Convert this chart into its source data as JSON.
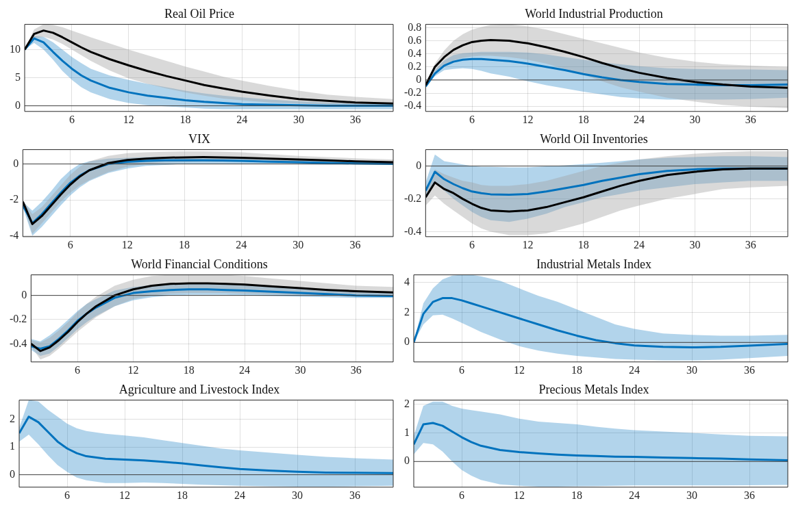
{
  "chart_data": [
    {
      "type": "line",
      "title": "Real Oil Price",
      "x": [
        1,
        2,
        3,
        4,
        5,
        6,
        7,
        8,
        10,
        12,
        14,
        16,
        18,
        20,
        22,
        24,
        27,
        30,
        33,
        36,
        40
      ],
      "xlim": [
        1,
        40
      ],
      "xticks": [
        6,
        12,
        18,
        24,
        30,
        36
      ],
      "ylim": [
        -1,
        14.5
      ],
      "yticks": [
        0,
        5,
        10
      ],
      "grid": true,
      "marker": "none",
      "line_style": "solid",
      "ref_lines": [
        {
          "axis": "y",
          "value": 0,
          "color": "#404040"
        }
      ],
      "series": [
        {
          "color": "#0072bd",
          "values": [
            10,
            12,
            11.3,
            9.6,
            8,
            6.6,
            5.4,
            4.5,
            3.2,
            2.4,
            1.8,
            1.4,
            1,
            0.7,
            0.5,
            0.3,
            0.2,
            0.1,
            0,
            0,
            0
          ],
          "lower": [
            10,
            11.2,
            10,
            8.2,
            6.2,
            4.6,
            3.3,
            2.4,
            1.2,
            0.5,
            0.1,
            -0.1,
            -0.3,
            -0.5,
            -0.6,
            -0.6,
            -0.6,
            -0.6,
            -0.6,
            -0.6,
            -0.6
          ],
          "upper": [
            10,
            12.4,
            12.3,
            11.3,
            10,
            8.7,
            7.6,
            6.6,
            5.4,
            4.6,
            3.9,
            3.3,
            2.7,
            2.2,
            1.8,
            1.5,
            1.1,
            0.8,
            0.6,
            0.5,
            0.4
          ]
        },
        {
          "color": "#000000",
          "values": [
            10,
            12.8,
            13.4,
            13,
            12.2,
            11.3,
            10.4,
            9.6,
            8.3,
            7.2,
            6.2,
            5.3,
            4.5,
            3.7,
            3.1,
            2.5,
            1.8,
            1.2,
            0.9,
            0.6,
            0.4
          ],
          "lower": [
            10,
            12,
            12.3,
            11.8,
            11,
            10,
            9,
            8,
            6.3,
            4.9,
            3.9,
            3.1,
            2.4,
            1.8,
            1.3,
            1,
            0.6,
            0.4,
            0.2,
            0.1,
            0
          ],
          "upper": [
            10,
            13.6,
            14.5,
            14.4,
            14,
            13.4,
            12.8,
            12.2,
            11.1,
            10,
            9,
            8,
            7,
            6.1,
            5.2,
            4.5,
            3.5,
            2.7,
            2,
            1.6,
            1.2
          ]
        }
      ]
    },
    {
      "type": "line",
      "title": "World Industrial Production",
      "x": [
        1,
        2,
        3,
        4,
        5,
        6,
        7,
        8,
        10,
        12,
        14,
        16,
        18,
        20,
        22,
        24,
        27,
        30,
        33,
        36,
        40
      ],
      "xlim": [
        1,
        40
      ],
      "xticks": [
        6,
        12,
        18,
        24,
        30,
        36
      ],
      "ylim": [
        -0.48,
        0.85
      ],
      "yticks": [
        -0.4,
        -0.2,
        0,
        0.2,
        0.4,
        0.6,
        0.8
      ],
      "grid": true,
      "marker": "none",
      "line_style": "solid",
      "ref_lines": [
        {
          "axis": "y",
          "value": 0,
          "color": "#404040"
        }
      ],
      "series": [
        {
          "color": "#0072bd",
          "values": [
            -0.1,
            0.1,
            0.22,
            0.28,
            0.31,
            0.32,
            0.32,
            0.31,
            0.29,
            0.25,
            0.2,
            0.15,
            0.09,
            0.04,
            0,
            -0.03,
            -0.06,
            -0.07,
            -0.08,
            -0.08,
            -0.07
          ],
          "lower": [
            -0.1,
            0.06,
            0.15,
            0.17,
            0.18,
            0.17,
            0.14,
            0.1,
            0.05,
            -0.02,
            -0.08,
            -0.13,
            -0.18,
            -0.22,
            -0.26,
            -0.28,
            -0.3,
            -0.3,
            -0.3,
            -0.29,
            -0.27
          ],
          "upper": [
            -0.1,
            0.15,
            0.3,
            0.38,
            0.41,
            0.42,
            0.43,
            0.43,
            0.43,
            0.42,
            0.39,
            0.35,
            0.31,
            0.27,
            0.24,
            0.21,
            0.18,
            0.17,
            0.16,
            0.16,
            0.15
          ]
        },
        {
          "color": "#000000",
          "values": [
            -0.08,
            0.2,
            0.35,
            0.46,
            0.53,
            0.58,
            0.6,
            0.61,
            0.6,
            0.56,
            0.5,
            0.43,
            0.35,
            0.26,
            0.18,
            0.11,
            0.03,
            -0.03,
            -0.07,
            -0.1,
            -0.12
          ],
          "lower": [
            -0.08,
            0.13,
            0.23,
            0.3,
            0.34,
            0.36,
            0.37,
            0.37,
            0.35,
            0.31,
            0.25,
            0.17,
            0.08,
            -0.02,
            -0.11,
            -0.18,
            -0.27,
            -0.33,
            -0.38,
            -0.41,
            -0.43
          ],
          "upper": [
            -0.08,
            0.25,
            0.45,
            0.6,
            0.7,
            0.77,
            0.81,
            0.84,
            0.85,
            0.82,
            0.77,
            0.7,
            0.63,
            0.56,
            0.49,
            0.42,
            0.34,
            0.28,
            0.24,
            0.22,
            0.2
          ]
        }
      ]
    },
    {
      "type": "line",
      "title": "VIX",
      "x": [
        1,
        2,
        3,
        4,
        5,
        6,
        7,
        8,
        10,
        12,
        14,
        16,
        18,
        20,
        22,
        24,
        27,
        30,
        33,
        36,
        40
      ],
      "xlim": [
        1,
        40
      ],
      "xticks": [
        6,
        12,
        18,
        24,
        30,
        36
      ],
      "ylim": [
        -4.05,
        0.8
      ],
      "yticks": [
        -4,
        -2,
        0
      ],
      "grid": true,
      "marker": "none",
      "line_style": "solid",
      "ref_lines": [
        {
          "axis": "y",
          "value": 0,
          "color": "#404040"
        }
      ],
      "series": [
        {
          "color": "#0072bd",
          "values": [
            -2.3,
            -3.3,
            -2.8,
            -2.2,
            -1.6,
            -1.05,
            -0.65,
            -0.35,
            0,
            0.12,
            0.17,
            0.2,
            0.2,
            0.2,
            0.19,
            0.17,
            0.13,
            0.1,
            0.06,
            0.03,
            0
          ],
          "lower": [
            -2.4,
            -4,
            -3.5,
            -2.9,
            -2.3,
            -1.75,
            -1.3,
            -0.95,
            -0.5,
            -0.25,
            -0.1,
            -0.05,
            0,
            0,
            0,
            0,
            0,
            -0.02,
            -0.04,
            -0.05,
            -0.05
          ],
          "upper": [
            -2.1,
            -2.6,
            -2.1,
            -1.5,
            -0.85,
            -0.35,
            0,
            0.15,
            0.3,
            0.35,
            0.38,
            0.4,
            0.4,
            0.4,
            0.38,
            0.35,
            0.3,
            0.25,
            0.2,
            0.15,
            0.1
          ]
        },
        {
          "color": "#000000",
          "values": [
            -2.1,
            -3.35,
            -2.9,
            -2.3,
            -1.7,
            -1.15,
            -0.7,
            -0.35,
            0.05,
            0.22,
            0.3,
            0.35,
            0.37,
            0.38,
            0.37,
            0.35,
            0.3,
            0.25,
            0.2,
            0.15,
            0.1
          ],
          "lower": [
            -2.2,
            -3.9,
            -3.3,
            -2.7,
            -2.1,
            -1.6,
            -1.2,
            -0.9,
            -0.45,
            -0.15,
            0,
            0.08,
            0.1,
            0.12,
            0.12,
            0.12,
            0.1,
            0.08,
            0.06,
            0.04,
            0.02
          ],
          "upper": [
            -2,
            -2.8,
            -2.4,
            -1.8,
            -1.2,
            -0.6,
            -0.15,
            0.15,
            0.45,
            0.6,
            0.65,
            0.68,
            0.7,
            0.7,
            0.68,
            0.65,
            0.55,
            0.45,
            0.38,
            0.32,
            0.25
          ]
        }
      ]
    },
    {
      "type": "line",
      "title": "World Oil Inventories",
      "x": [
        1,
        2,
        3,
        4,
        5,
        6,
        7,
        8,
        10,
        12,
        14,
        16,
        18,
        20,
        22,
        24,
        27,
        30,
        33,
        36,
        40
      ],
      "xlim": [
        1,
        40
      ],
      "xticks": [
        6,
        12,
        18,
        24,
        30,
        36
      ],
      "ylim": [
        -0.43,
        0.1
      ],
      "yticks": [
        -0.4,
        -0.2,
        0
      ],
      "grid": true,
      "marker": "none",
      "line_style": "solid",
      "ref_lines": [
        {
          "axis": "y",
          "value": 0,
          "color": "#404040"
        }
      ],
      "series": [
        {
          "color": "#0072bd",
          "values": [
            -0.15,
            -0.035,
            -0.08,
            -0.11,
            -0.135,
            -0.155,
            -0.165,
            -0.172,
            -0.175,
            -0.17,
            -0.155,
            -0.135,
            -0.115,
            -0.09,
            -0.07,
            -0.05,
            -0.03,
            -0.02,
            -0.015,
            -0.015,
            -0.015
          ],
          "lower": [
            -0.2,
            -0.1,
            -0.15,
            -0.2,
            -0.24,
            -0.28,
            -0.31,
            -0.33,
            -0.34,
            -0.32,
            -0.29,
            -0.25,
            -0.22,
            -0.19,
            -0.17,
            -0.15,
            -0.13,
            -0.11,
            -0.1,
            -0.09,
            -0.09
          ],
          "upper": [
            -0.1,
            0.07,
            0.03,
            0.02,
            0.01,
            0,
            -0.005,
            -0.005,
            -0.008,
            -0.008,
            -0.002,
            0.005,
            0.012,
            0.02,
            0.03,
            0.04,
            0.05,
            0.055,
            0.06,
            0.06,
            0.055
          ]
        },
        {
          "color": "#000000",
          "values": [
            -0.19,
            -0.1,
            -0.14,
            -0.165,
            -0.2,
            -0.23,
            -0.255,
            -0.27,
            -0.277,
            -0.27,
            -0.25,
            -0.22,
            -0.19,
            -0.155,
            -0.12,
            -0.09,
            -0.055,
            -0.035,
            -0.02,
            -0.015,
            -0.015
          ],
          "lower": [
            -0.24,
            -0.18,
            -0.23,
            -0.27,
            -0.31,
            -0.35,
            -0.38,
            -0.4,
            -0.42,
            -0.42,
            -0.41,
            -0.38,
            -0.35,
            -0.31,
            -0.27,
            -0.24,
            -0.2,
            -0.17,
            -0.14,
            -0.13,
            -0.12
          ],
          "upper": [
            -0.14,
            -0.02,
            -0.05,
            -0.07,
            -0.09,
            -0.1,
            -0.115,
            -0.12,
            -0.12,
            -0.11,
            -0.09,
            -0.06,
            -0.03,
            0,
            0.02,
            0.04,
            0.06,
            0.075,
            0.085,
            0.09,
            0.09
          ]
        }
      ]
    },
    {
      "type": "line",
      "title": "World Financial Conditions",
      "x": [
        1,
        2,
        3,
        4,
        5,
        6,
        7,
        8,
        10,
        12,
        14,
        16,
        18,
        20,
        22,
        24,
        27,
        30,
        33,
        36,
        40
      ],
      "xlim": [
        1,
        40
      ],
      "xticks": [
        6,
        12,
        18,
        24,
        30,
        36
      ],
      "ylim": [
        -0.55,
        0.17
      ],
      "yticks": [
        -0.4,
        -0.2,
        0
      ],
      "grid": true,
      "marker": "none",
      "line_style": "solid",
      "ref_lines": [
        {
          "axis": "y",
          "value": 0,
          "color": "#404040"
        }
      ],
      "series": [
        {
          "color": "#0072bd",
          "values": [
            -0.42,
            -0.44,
            -0.42,
            -0.36,
            -0.29,
            -0.21,
            -0.15,
            -0.1,
            -0.02,
            0.02,
            0.035,
            0.045,
            0.05,
            0.05,
            0.045,
            0.04,
            0.03,
            0.02,
            0.01,
            0,
            -0.005
          ],
          "lower": [
            -0.45,
            -0.5,
            -0.48,
            -0.42,
            -0.35,
            -0.28,
            -0.22,
            -0.17,
            -0.09,
            -0.04,
            -0.015,
            0,
            0.005,
            0.005,
            0.005,
            0,
            -0.005,
            -0.01,
            -0.015,
            -0.02,
            -0.02
          ],
          "upper": [
            -0.36,
            -0.38,
            -0.33,
            -0.27,
            -0.2,
            -0.13,
            -0.07,
            -0.03,
            0.04,
            0.07,
            0.085,
            0.09,
            0.095,
            0.095,
            0.09,
            0.085,
            0.07,
            0.06,
            0.05,
            0.04,
            0.03
          ]
        },
        {
          "color": "#000000",
          "values": [
            -0.4,
            -0.46,
            -0.43,
            -0.37,
            -0.3,
            -0.22,
            -0.15,
            -0.09,
            0,
            0.05,
            0.08,
            0.095,
            0.1,
            0.1,
            0.095,
            0.09,
            0.075,
            0.06,
            0.045,
            0.035,
            0.025
          ],
          "lower": [
            -0.42,
            -0.53,
            -0.5,
            -0.44,
            -0.37,
            -0.3,
            -0.24,
            -0.18,
            -0.09,
            -0.03,
            0,
            0.015,
            0.02,
            0.02,
            0.02,
            0.015,
            0.01,
            0.005,
            0,
            -0.005,
            -0.01
          ],
          "upper": [
            -0.37,
            -0.39,
            -0.35,
            -0.29,
            -0.22,
            -0.14,
            -0.07,
            -0.01,
            0.08,
            0.13,
            0.16,
            0.17,
            0.17,
            0.17,
            0.17,
            0.16,
            0.14,
            0.12,
            0.1,
            0.08,
            0.07
          ]
        }
      ]
    },
    {
      "type": "line",
      "title": "Industrial Metals Index",
      "x": [
        1,
        2,
        3,
        4,
        5,
        6,
        7,
        8,
        10,
        12,
        14,
        16,
        18,
        20,
        22,
        24,
        27,
        30,
        33,
        36,
        40
      ],
      "xlim": [
        1,
        40
      ],
      "xticks": [
        6,
        12,
        18,
        24,
        30,
        36
      ],
      "ylim": [
        -1.3,
        4.5
      ],
      "yticks": [
        0,
        2,
        4
      ],
      "grid": true,
      "marker": "none",
      "line_style": "solid",
      "ref_lines": [
        {
          "axis": "y",
          "value": 0,
          "color": "#404040"
        }
      ],
      "series": [
        {
          "color": "#0072bd",
          "values": [
            0,
            1.9,
            2.7,
            2.95,
            2.95,
            2.8,
            2.6,
            2.4,
            2,
            1.6,
            1.2,
            0.8,
            0.45,
            0.15,
            -0.05,
            -0.2,
            -0.3,
            -0.33,
            -0.3,
            -0.22,
            -0.1
          ],
          "lower": [
            0,
            1.2,
            1.8,
            1.85,
            1.6,
            1.3,
            1,
            0.7,
            0.2,
            -0.25,
            -0.55,
            -0.75,
            -0.9,
            -1,
            -1.1,
            -1.15,
            -1.2,
            -1.2,
            -1.15,
            -1.05,
            -0.9
          ],
          "upper": [
            0,
            2.6,
            3.6,
            4.2,
            4.45,
            4.5,
            4.5,
            4.4,
            4.1,
            3.6,
            3.1,
            2.7,
            2.2,
            1.7,
            1.2,
            0.9,
            0.6,
            0.5,
            0.45,
            0.45,
            0.5
          ]
        }
      ]
    },
    {
      "type": "line",
      "title": "Agriculture and Livestock Index",
      "x": [
        1,
        2,
        3,
        4,
        5,
        6,
        7,
        8,
        10,
        12,
        14,
        16,
        18,
        20,
        22,
        24,
        27,
        30,
        33,
        36,
        40
      ],
      "xlim": [
        1,
        40
      ],
      "xticks": [
        6,
        12,
        18,
        24,
        30,
        36
      ],
      "ylim": [
        -0.45,
        2.7
      ],
      "yticks": [
        0,
        1,
        2
      ],
      "grid": true,
      "marker": "none",
      "line_style": "solid",
      "ref_lines": [
        {
          "axis": "y",
          "value": 0,
          "color": "#404040"
        }
      ],
      "series": [
        {
          "color": "#0072bd",
          "values": [
            1.5,
            2.1,
            1.9,
            1.55,
            1.2,
            0.95,
            0.78,
            0.67,
            0.58,
            0.55,
            0.52,
            0.47,
            0.41,
            0.34,
            0.27,
            0.21,
            0.15,
            0.11,
            0.08,
            0.07,
            0.06
          ],
          "lower": [
            1.2,
            1.45,
            1.1,
            0.7,
            0.35,
            0.1,
            -0.1,
            -0.2,
            -0.3,
            -0.3,
            -0.28,
            -0.3,
            -0.33,
            -0.36,
            -0.38,
            -0.4,
            -0.42,
            -0.43,
            -0.43,
            -0.42,
            -0.4
          ],
          "upper": [
            1.7,
            2.7,
            2.65,
            2.35,
            2.1,
            1.85,
            1.68,
            1.58,
            1.48,
            1.42,
            1.35,
            1.25,
            1.15,
            1.05,
            0.95,
            0.88,
            0.8,
            0.72,
            0.65,
            0.6,
            0.55
          ]
        }
      ]
    },
    {
      "type": "line",
      "title": "Precious Metals Index",
      "x": [
        1,
        2,
        3,
        4,
        5,
        6,
        7,
        8,
        10,
        12,
        14,
        16,
        18,
        20,
        22,
        24,
        27,
        30,
        33,
        36,
        40
      ],
      "xlim": [
        1,
        40
      ],
      "xticks": [
        6,
        12,
        18,
        24,
        30,
        36
      ],
      "ylim": [
        -0.9,
        2.15
      ],
      "yticks": [
        0,
        1,
        2
      ],
      "grid": true,
      "marker": "none",
      "line_style": "solid",
      "ref_lines": [
        {
          "axis": "y",
          "value": 0,
          "color": "#404040"
        }
      ],
      "series": [
        {
          "color": "#0072bd",
          "values": [
            0.6,
            1.3,
            1.35,
            1.25,
            1.05,
            0.85,
            0.68,
            0.55,
            0.4,
            0.33,
            0.28,
            0.24,
            0.21,
            0.19,
            0.17,
            0.16,
            0.14,
            0.12,
            0.1,
            0.07,
            0.04
          ],
          "lower": [
            0.25,
            0.65,
            0.6,
            0.35,
            0,
            -0.3,
            -0.5,
            -0.65,
            -0.8,
            -0.85,
            -0.88,
            -0.88,
            -0.87,
            -0.86,
            -0.85,
            -0.84,
            -0.84,
            -0.84,
            -0.84,
            -0.83,
            -0.82
          ],
          "upper": [
            0.9,
            1.95,
            2.1,
            2.1,
            1.95,
            1.85,
            1.8,
            1.75,
            1.65,
            1.5,
            1.4,
            1.35,
            1.3,
            1.22,
            1.15,
            1.1,
            1.05,
            1,
            0.95,
            0.9,
            0.88
          ]
        }
      ]
    }
  ]
}
